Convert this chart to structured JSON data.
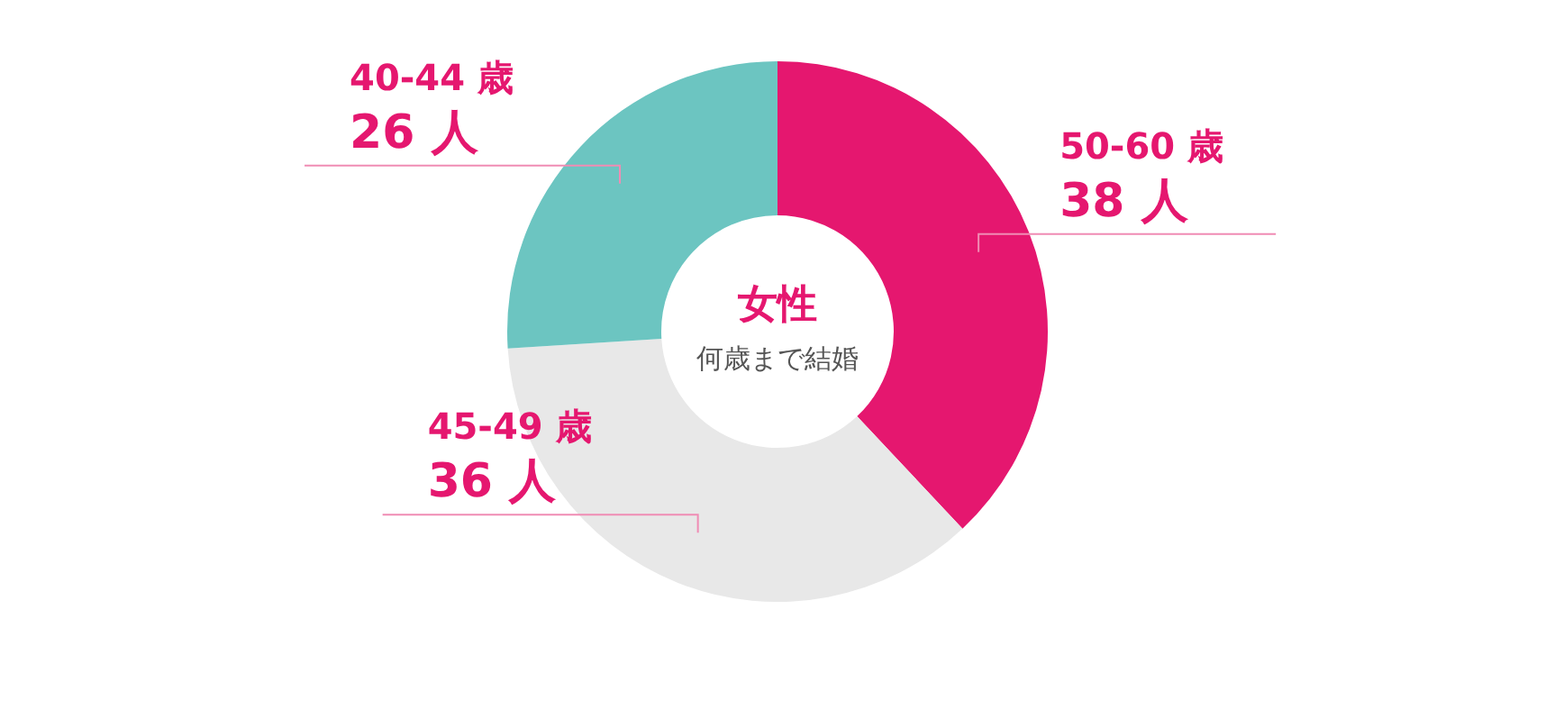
{
  "chart_data": {
    "type": "donut",
    "title": "女性",
    "subtitle": "何歳まで結婚",
    "categories": [
      "50-60 歳",
      "45-49 歳",
      "40-44 歳"
    ],
    "values": [
      38,
      36,
      26
    ],
    "colors": [
      "#e5176f",
      "#e8e8e8",
      "#6cc5c1"
    ],
    "value_labels": [
      "38 人",
      "36 人",
      "26 人"
    ]
  }
}
